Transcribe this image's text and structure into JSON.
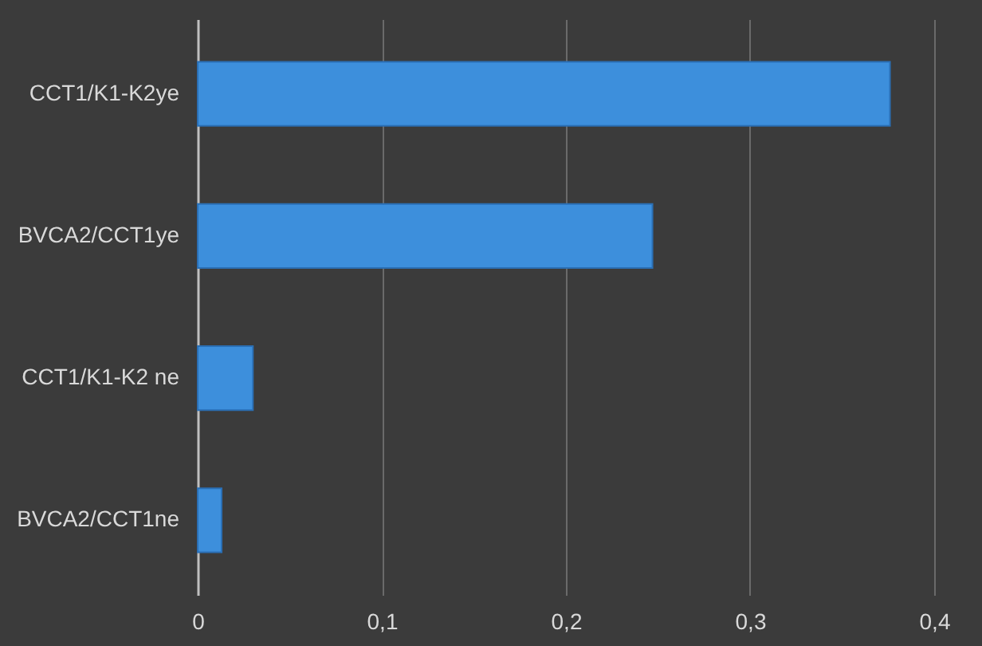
{
  "chart_data": {
    "type": "bar",
    "orientation": "horizontal",
    "categories": [
      "CCT1/K1-K2ye",
      "BVCA2/CCT1ye",
      "CCT1/K1-K2 ne",
      "BVCA2/CCT1ne"
    ],
    "values": [
      0.376,
      0.247,
      0.03,
      0.013
    ],
    "color": "#3d8fdc",
    "xlim": [
      0,
      0.4
    ],
    "xticks": [
      {
        "value": 0,
        "label": "0"
      },
      {
        "value": 0.1,
        "label": "0,1"
      },
      {
        "value": 0.2,
        "label": "0,2"
      },
      {
        "value": 0.3,
        "label": "0,3"
      },
      {
        "value": 0.4,
        "label": "0,4"
      }
    ],
    "grid": "x"
  }
}
